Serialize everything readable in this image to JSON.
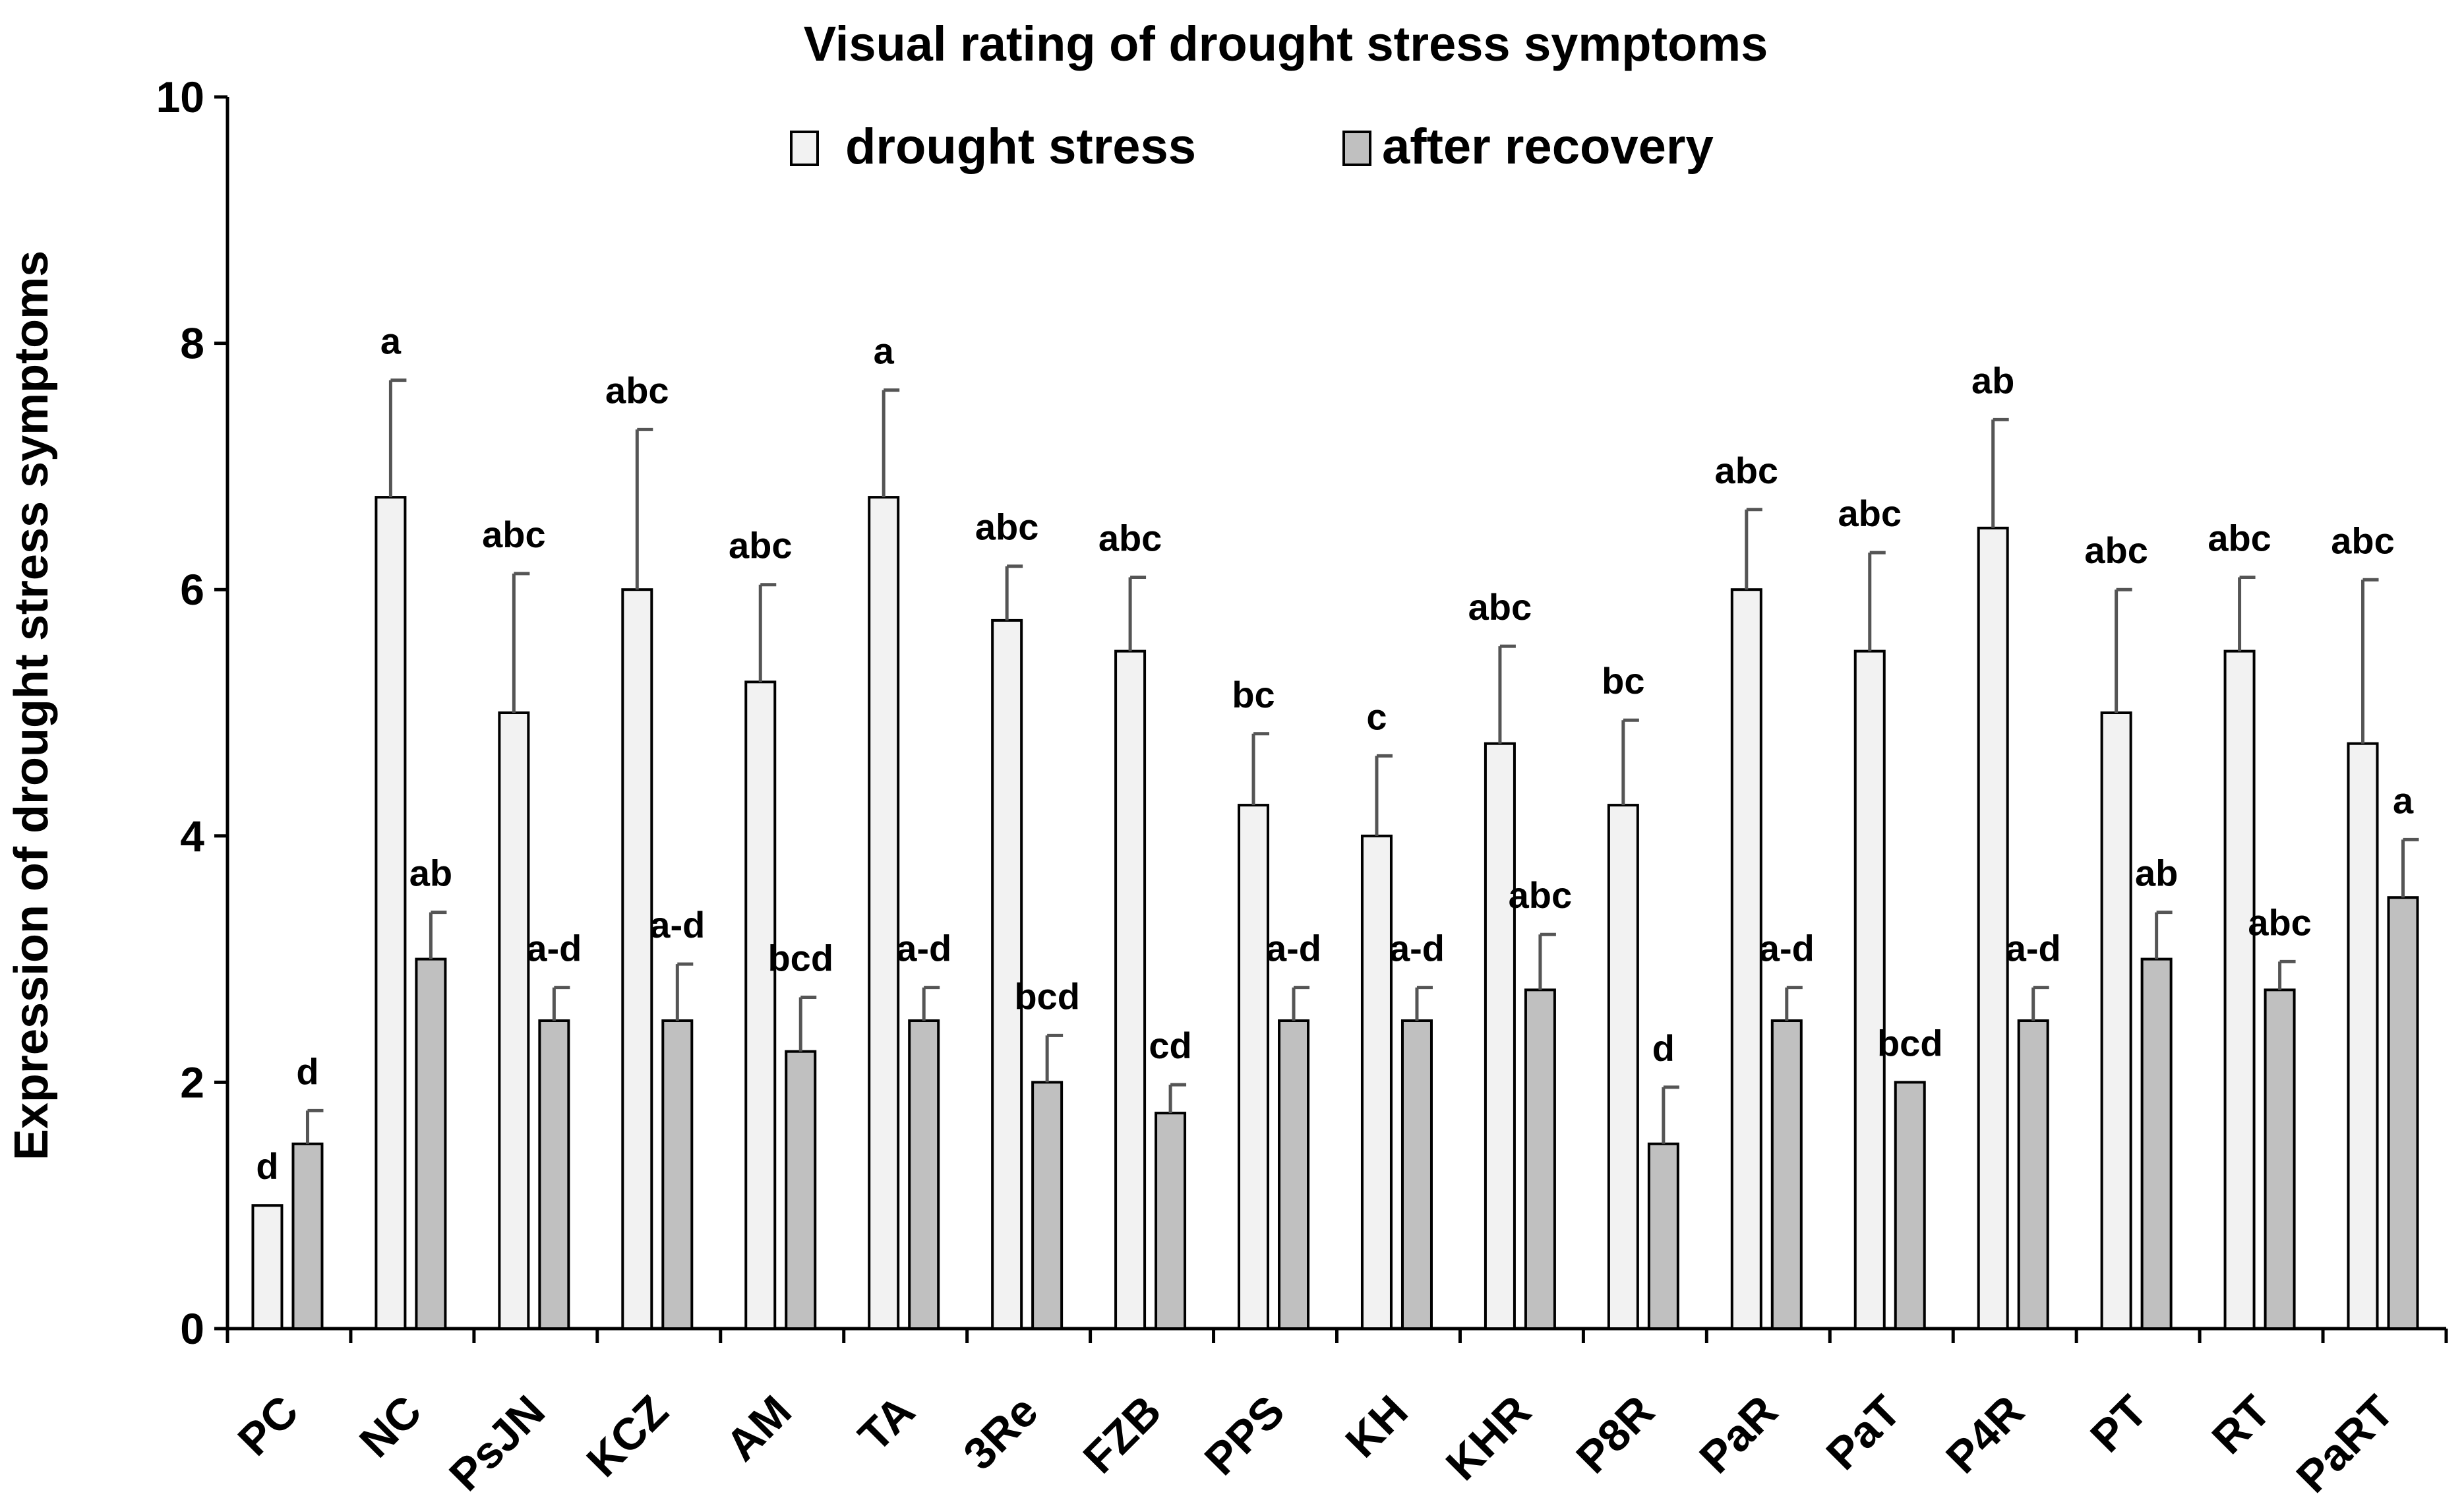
{
  "chart_data": {
    "type": "bar",
    "title": "Visual rating of drought stress symptoms",
    "ylabel": "Expression of drought stress symptoms",
    "xlabel": "",
    "ylim": [
      0,
      10
    ],
    "yticks": [
      0,
      2,
      4,
      6,
      8,
      10
    ],
    "legend_position": "top-center",
    "categories": [
      "PC",
      "NC",
      "PsJN",
      "KCZ",
      "AM",
      "TA",
      "3Re",
      "FZB",
      "PPS",
      "KH",
      "KHR",
      "P8R",
      "PaR",
      "PaT",
      "P4R",
      "PT",
      "RT",
      "PaRT"
    ],
    "series": [
      {
        "name": "drought stress",
        "color": "#f2f2f2",
        "values": [
          1,
          6.75,
          5,
          6,
          5.25,
          6.75,
          5.75,
          5.5,
          4.25,
          4,
          4.75,
          4.25,
          6,
          5.5,
          6.5,
          5,
          5.5,
          4.75
        ],
        "errors": [
          0,
          0.95,
          1.13,
          1.3,
          0.79,
          0.87,
          0.44,
          0.6,
          0.58,
          0.65,
          0.79,
          0.69,
          0.65,
          0.8,
          0.88,
          1,
          0.6,
          1.33
        ],
        "letters": [
          "d",
          "a",
          "abc",
          "abc",
          "abc",
          "a",
          "abc",
          "abc",
          "bc",
          "c",
          "abc",
          "bc",
          "abc",
          "abc",
          "ab",
          "abc",
          "abc",
          "abc"
        ]
      },
      {
        "name": "after recovery",
        "color": "#c0c0c0",
        "values": [
          1.5,
          3,
          2.5,
          2.5,
          2.25,
          2.5,
          2,
          1.75,
          2.5,
          2.5,
          2.75,
          1.5,
          2.5,
          2,
          2.5,
          3,
          2.75,
          3.5
        ],
        "errors": [
          0.27,
          0.38,
          0.27,
          0.46,
          0.44,
          0.27,
          0.38,
          0.23,
          0.27,
          0.27,
          0.45,
          0.46,
          0.27,
          0,
          0.27,
          0.38,
          0.23,
          0.47
        ],
        "letters": [
          "d",
          "ab",
          "a-d",
          "a-d",
          "bcd",
          "a-d",
          "bcd",
          "cd",
          "a-d",
          "a-d",
          "abc",
          "d",
          "a-d",
          "bcd",
          "a-d",
          "ab",
          "abc",
          "a"
        ]
      }
    ]
  }
}
